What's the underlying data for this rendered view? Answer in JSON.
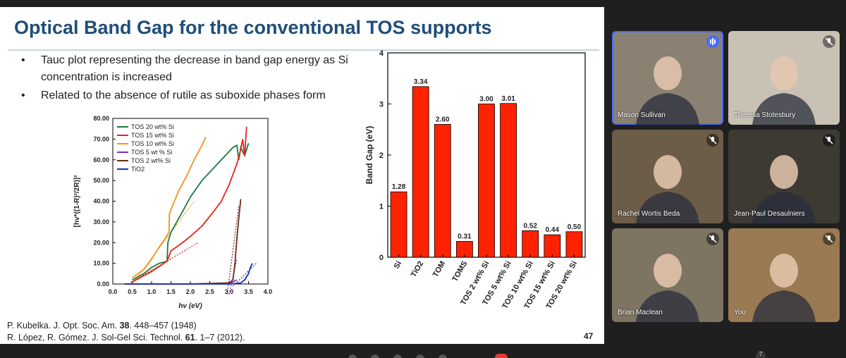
{
  "slide": {
    "title": "Optical Band Gap for the conventional TOS supports",
    "bullets": [
      "Tauc plot representing the decrease in band gap energy as Si concentration is increased",
      "Related to the absence of rutile as suboxide phases form"
    ],
    "references": [
      {
        "prefix": "P. Kubelka. J. Opt. Soc. Am. ",
        "vol": "38",
        "suffix": ". 448–457 (1948)"
      },
      {
        "prefix": "R. López, R. Gómez. J. Sol-Gel Sci. Technol. ",
        "vol": "61",
        "suffix": ". 1–7 (2012)."
      }
    ],
    "page_number": "47"
  },
  "chart_data": [
    {
      "type": "line",
      "title": "",
      "xlabel": "hv (eV)",
      "ylabel": "[hv*((1-R)²/2R)]²",
      "xlim": [
        0,
        4.0
      ],
      "ylim": [
        0,
        80
      ],
      "xticks": [
        "0.0",
        "0.5",
        "1.0",
        "1.5",
        "2.0",
        "2.5",
        "3.0",
        "3.5",
        "4.0"
      ],
      "yticks": [
        "0.00",
        "10.00",
        "20.00",
        "30.00",
        "40.00",
        "50.00",
        "60.00",
        "70.00",
        "80.00"
      ],
      "legend_position": "top-left",
      "series": [
        {
          "name": "TOS 20 wt% Si",
          "color": "#1a7a3a",
          "x": [
            0.5,
            0.8,
            1.0,
            1.2,
            1.4,
            1.42,
            1.5,
            1.8,
            2.0,
            2.3,
            2.6,
            2.8,
            3.0,
            3.1,
            3.2,
            3.25,
            3.3,
            3.4,
            3.5
          ],
          "y": [
            2,
            5,
            8,
            10,
            11,
            20,
            25,
            35,
            42,
            50,
            56,
            60,
            64,
            66,
            67,
            60,
            66,
            62,
            68
          ]
        },
        {
          "name": "TOS 15 wt% Si",
          "color": "#e8231c",
          "x": [
            0.5,
            1.0,
            1.4,
            1.5,
            1.8,
            2.0,
            2.3,
            2.6,
            2.8,
            3.0,
            3.2,
            3.3,
            3.35,
            3.4,
            3.45
          ],
          "y": [
            1,
            6,
            11,
            16,
            20,
            23,
            28,
            35,
            40,
            48,
            58,
            65,
            70,
            62,
            76
          ]
        },
        {
          "name": "TOS 10 wt% Si",
          "color": "#f5921e",
          "x": [
            0.5,
            0.8,
            1.0,
            1.2,
            1.35,
            1.45,
            1.46,
            1.5,
            1.7,
            1.9,
            2.1,
            2.3,
            2.4
          ],
          "y": [
            3,
            7,
            12,
            18,
            22,
            25,
            34,
            36,
            45,
            52,
            60,
            67,
            71
          ]
        },
        {
          "name": "TOS 5 wt % Si",
          "color": "#7b2fbe",
          "x": [
            0.3,
            1.0,
            2.0,
            3.0,
            3.1,
            3.2
          ],
          "y": [
            0,
            0,
            0,
            0.4,
            1,
            2
          ]
        },
        {
          "name": "TOS 2 wt% Si",
          "color": "#6b2a1a",
          "x": [
            0.3,
            1.0,
            2.0,
            3.0,
            3.1,
            3.15,
            3.2,
            3.25,
            3.3
          ],
          "y": [
            0,
            0,
            0,
            0.5,
            2,
            10,
            22,
            32,
            41
          ]
        },
        {
          "name": "TiO2",
          "color": "#1a2fbf",
          "x": [
            0.3,
            1.0,
            2.0,
            3.0,
            3.3,
            3.4,
            3.5,
            3.55,
            3.6
          ],
          "y": [
            0,
            0,
            0,
            0,
            0.5,
            2,
            5,
            8,
            10
          ]
        }
      ]
    },
    {
      "type": "bar",
      "title": "",
      "xlabel": "",
      "ylabel": "Band Gap (eV)",
      "ylim": [
        0,
        4
      ],
      "yticks": [
        "0",
        "1",
        "2",
        "3",
        "4"
      ],
      "bar_color": "#ff2200",
      "categories": [
        "Si",
        "TiO2",
        "TOM",
        "TOMS",
        "TOS 2 wt% Si",
        "TOS 5 wt% Si",
        "TOS 10 wt% Si",
        "TOS 15 wt% Si",
        "TOS 20 wt% Si"
      ],
      "values": [
        1.28,
        3.34,
        2.6,
        0.31,
        3.0,
        3.01,
        0.52,
        0.44,
        0.5
      ],
      "value_labels": [
        "1.28",
        "3.34",
        "2.60",
        "0.31",
        "3.00",
        "3.01",
        "0.52",
        "0.44",
        "0.50"
      ]
    }
  ],
  "participants": [
    {
      "name": "Mason Sullivan",
      "speaking": true,
      "bg": "#8a8172"
    },
    {
      "name": "Theresa Stotesbury",
      "speaking": false,
      "bg": "#c9c2b4"
    },
    {
      "name": "Rachel Wortis Beda",
      "speaking": false,
      "bg": "#6b5d48"
    },
    {
      "name": "Jean-Paul Desaulniers",
      "speaking": false,
      "bg": "#3d3a34"
    },
    {
      "name": "Brian Maclean",
      "speaking": false,
      "bg": "#7d7462"
    },
    {
      "name": "You",
      "speaking": false,
      "bg": "#9a7a52"
    }
  ],
  "more_count": "7",
  "colors": {
    "title": "#1f4e79",
    "speaking_border": "#4a6cf7"
  }
}
